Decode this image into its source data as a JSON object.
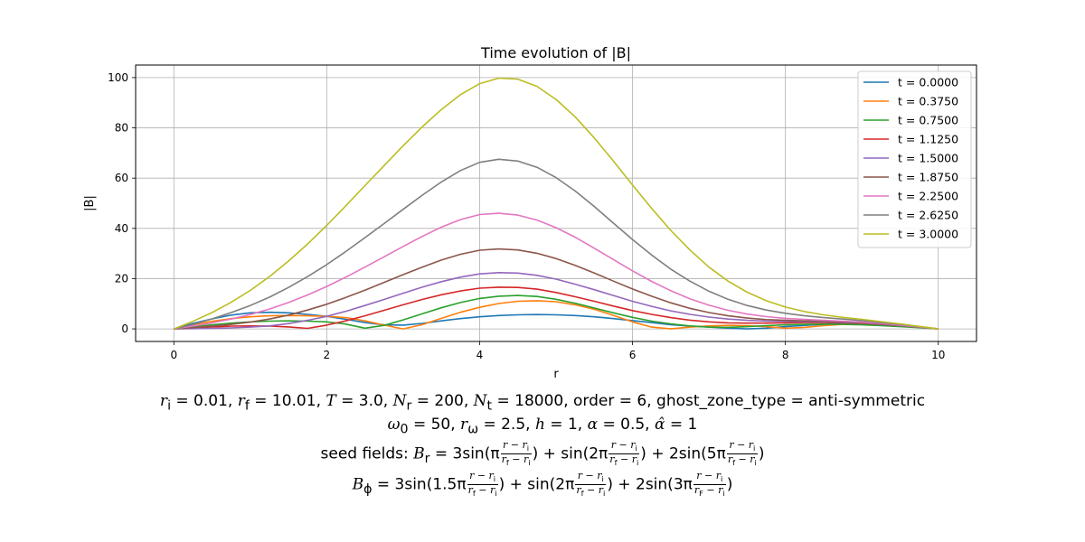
{
  "chart_data": {
    "type": "line",
    "title": "Time evolution of |B|",
    "xlabel": "r",
    "ylabel": "|B|",
    "xlim": [
      -0.5,
      10.5
    ],
    "ylim": [
      -5,
      105
    ],
    "xticks": [
      0,
      2,
      4,
      6,
      8,
      10
    ],
    "yticks": [
      0,
      20,
      40,
      60,
      80,
      100
    ],
    "grid": true,
    "legend_position": "top-right",
    "x": [
      0,
      0.25,
      0.5,
      0.75,
      1,
      1.25,
      1.5,
      1.75,
      2,
      2.25,
      2.5,
      2.75,
      3,
      3.25,
      3.5,
      3.75,
      4,
      4.25,
      4.5,
      4.75,
      5,
      5.25,
      5.5,
      5.75,
      6,
      6.25,
      6.5,
      6.75,
      7,
      7.25,
      7.5,
      7.75,
      8,
      8.25,
      8.5,
      8.75,
      9,
      9.25,
      9.5,
      9.75,
      10
    ],
    "series": [
      {
        "name": "t = 0.0000",
        "color": "#1f77b4",
        "values": [
          0,
          2.2,
          4,
          5.5,
          6.4,
          6.6,
          6.4,
          5.8,
          5,
          3.8,
          2.5,
          1.6,
          1.5,
          2.2,
          3.2,
          4.1,
          4.8,
          5.3,
          5.6,
          5.7,
          5.6,
          5.3,
          4.8,
          4.1,
          3.3,
          2.5,
          1.7,
          1.1,
          0.7,
          0.3,
          0,
          0.3,
          0.9,
          1.4,
          1.8,
          2,
          2,
          1.7,
          1.2,
          0.6,
          0
        ]
      },
      {
        "name": "t = 0.3750",
        "color": "#ff7f0e",
        "values": [
          0,
          1.6,
          3,
          4.1,
          4.8,
          5.2,
          5.3,
          5.2,
          5,
          4.5,
          3.2,
          1.5,
          0,
          1.7,
          4.2,
          6.6,
          8.6,
          10.1,
          11,
          11.2,
          10.8,
          9.6,
          7.8,
          5.4,
          2.8,
          0.7,
          0,
          0.7,
          1.2,
          1.4,
          1.3,
          0.9,
          0.3,
          0.6,
          1.3,
          1.8,
          2,
          1.8,
          1.3,
          0.7,
          0
        ]
      },
      {
        "name": "t = 0.7500",
        "color": "#2ca02c",
        "values": [
          0,
          0.8,
          1.6,
          2.3,
          2.8,
          3.1,
          3.2,
          3.1,
          2.8,
          1.9,
          0.3,
          1.4,
          3.6,
          6,
          8.4,
          10.5,
          12.1,
          13,
          13.3,
          12.9,
          11.8,
          10.2,
          8.3,
          6.4,
          4.6,
          3.1,
          2,
          1.2,
          0.7,
          0.6,
          0.9,
          1.3,
          1.6,
          1.8,
          1.9,
          1.8,
          1.6,
          1.3,
          0.9,
          0.5,
          0
        ]
      },
      {
        "name": "t = 1.1250",
        "color": "#d62728",
        "values": [
          0,
          0.4,
          0.8,
          1.1,
          1.2,
          1.1,
          0.8,
          0.2,
          1.5,
          3.2,
          5.2,
          7.4,
          9.6,
          11.7,
          13.6,
          15.1,
          16.2,
          16.6,
          16.5,
          15.8,
          14.5,
          12.8,
          11,
          9.1,
          7.3,
          5.8,
          4.5,
          3.5,
          2.8,
          2.4,
          2.3,
          2.3,
          2.4,
          2.5,
          2.5,
          2.4,
          2.2,
          1.8,
          1.3,
          0.7,
          0
        ]
      },
      {
        "name": "t = 1.5000",
        "color": "#9467bd",
        "values": [
          0,
          0.1,
          0.2,
          0.4,
          0.7,
          1.2,
          2.1,
          3.4,
          5,
          7,
          9.3,
          11.7,
          14.2,
          16.6,
          18.8,
          20.6,
          21.9,
          22.4,
          22.2,
          21.3,
          19.8,
          17.8,
          15.6,
          13.3,
          11,
          9,
          7.2,
          5.8,
          4.7,
          3.9,
          3.4,
          3.1,
          3,
          2.9,
          2.8,
          2.6,
          2.3,
          1.9,
          1.3,
          0.7,
          0
        ]
      },
      {
        "name": "t = 1.8750",
        "color": "#8c564b",
        "values": [
          0,
          0.5,
          1.1,
          1.8,
          2.7,
          3.9,
          5.5,
          7.5,
          9.8,
          12.5,
          15.4,
          18.5,
          21.6,
          24.6,
          27.4,
          29.7,
          31.3,
          31.8,
          31.4,
          30.1,
          28,
          25.3,
          22.2,
          19,
          15.9,
          13,
          10.4,
          8.2,
          6.5,
          5.2,
          4.3,
          3.7,
          3.4,
          3.2,
          3,
          2.8,
          2.4,
          2,
          1.4,
          0.7,
          0
        ]
      },
      {
        "name": "t = 2.2500",
        "color": "#e377c2",
        "values": [
          0,
          1.1,
          2.4,
          3.9,
          5.7,
          7.9,
          10.5,
          13.5,
          16.9,
          20.6,
          24.6,
          28.7,
          32.8,
          36.8,
          40.5,
          43.5,
          45.5,
          46,
          45.3,
          43.3,
          40.3,
          36.5,
          32.1,
          27.6,
          23.1,
          18.9,
          15.2,
          12,
          9.4,
          7.4,
          5.9,
          4.9,
          4.2,
          3.8,
          3.4,
          3.1,
          2.7,
          2.2,
          1.5,
          0.8,
          0
        ]
      },
      {
        "name": "t = 2.6250",
        "color": "#7f7f7f",
        "values": [
          0,
          1.8,
          4,
          6.5,
          9.3,
          12.6,
          16.5,
          20.8,
          25.6,
          30.8,
          36.3,
          41.9,
          47.6,
          53.2,
          58.5,
          63,
          66.3,
          67.5,
          66.8,
          64.3,
          60.2,
          54.9,
          48.7,
          42.1,
          35.6,
          29.4,
          23.8,
          19,
          15,
          11.8,
          9.3,
          7.5,
          6.2,
          5.2,
          4.5,
          3.9,
          3.3,
          2.6,
          1.8,
          0.9,
          0
        ]
      },
      {
        "name": "t = 3.0000",
        "color": "#bcbd22",
        "values": [
          0,
          3,
          6.5,
          10.6,
          15.3,
          20.8,
          27,
          33.8,
          41.2,
          49,
          57,
          65,
          72.9,
          80.4,
          87.3,
          93.2,
          97.6,
          99.8,
          99.4,
          96.5,
          91.3,
          84.4,
          76,
          66.8,
          57.3,
          48,
          39.2,
          31.4,
          24.6,
          19,
          14.6,
          11.2,
          8.7,
          6.9,
          5.6,
          4.6,
          3.8,
          2.9,
          2,
          1,
          0
        ]
      }
    ]
  },
  "caption": {
    "line1": {
      "ri": "r",
      "ri_sub": "i",
      "ri_val": " = 0.01, ",
      "rf": "r",
      "rf_sub": "f",
      "rf_val": " = 10.01, ",
      "T": "T",
      "T_val": " = 3.0, ",
      "Nr": "N",
      "Nr_sub": "r",
      "Nr_val": " = 200, ",
      "Nt": "N",
      "Nt_sub": "t",
      "Nt_val": " = 18000, ",
      "order_text": "order = 6, ghost_zone_type = anti-symmetric"
    },
    "line2": {
      "w0": "ω",
      "w0_sub": "0",
      "w0_val": " = 50, ",
      "rw": "r",
      "rw_sub": "ω",
      "rw_val": " = 2.5, ",
      "h": "h",
      "h_val": " = 1, ",
      "a": "α",
      "a_val": " = 0.5, ",
      "ah": "α̂",
      "ah_val": " = 1"
    },
    "line3": {
      "prefix": "seed fields: ",
      "Br": "B",
      "Br_sub": "r",
      "eq": " = 3sin(π",
      "mid1": ") + sin(2π",
      "mid2": ") + 2sin(5π",
      "end": ")"
    },
    "line4": {
      "Bp": "B",
      "Bp_sub": "ϕ",
      "eq": " = 3sin(1.5π",
      "mid1": ") + sin(2π",
      "mid2": ") + 2sin(3π",
      "end": ")"
    },
    "frac_num": "r − r",
    "frac_num_sub": "i",
    "frac_den": "r",
    "frac_den_sub_f": "f",
    "frac_den_sub_F": "F",
    "frac_den_mid": " − r",
    "frac_den_sub_i": "i"
  }
}
